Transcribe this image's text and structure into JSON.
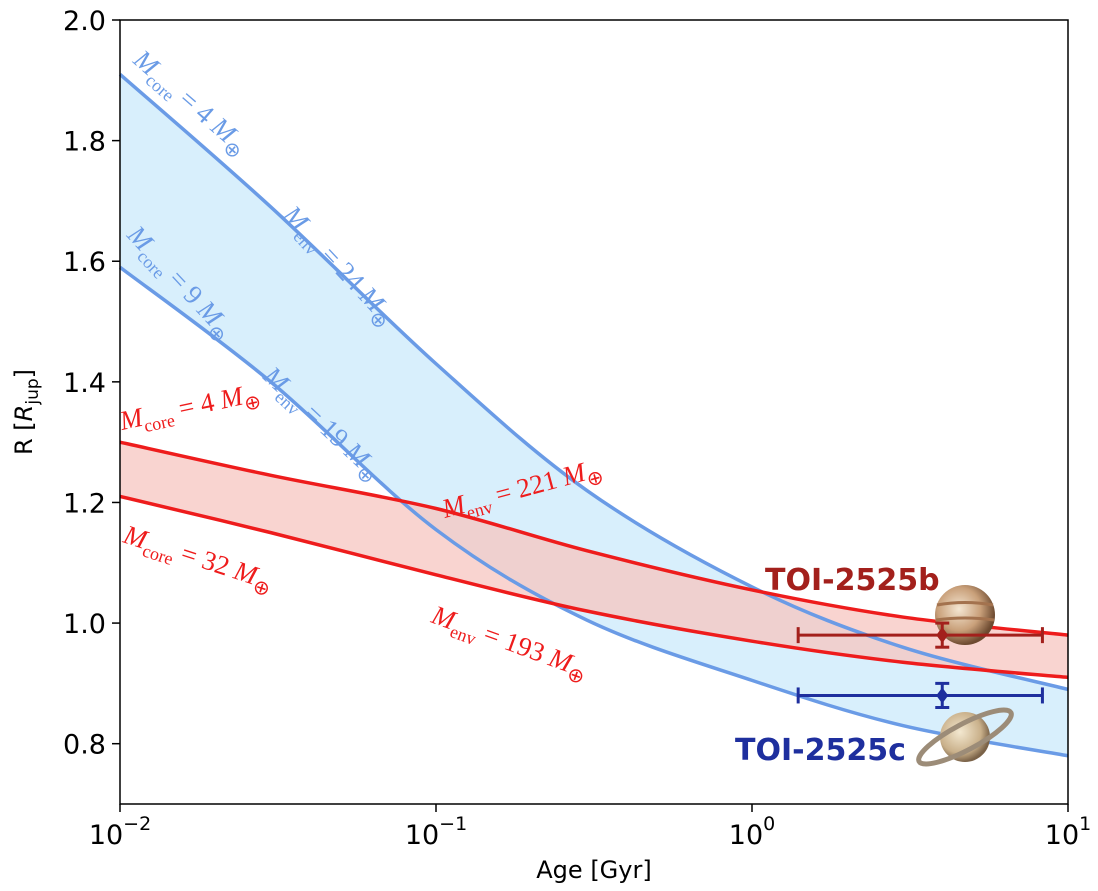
{
  "chart_data": {
    "type": "line",
    "xlabel": "Age [Gyr]",
    "ylabel": [
      "R [",
      "R",
      "jup",
      "]"
    ],
    "xscale": "log",
    "xlim": [
      0.01,
      10
    ],
    "ylim": [
      0.7,
      2.0
    ],
    "xticks": [
      {
        "value": 0.01,
        "label": "10",
        "exponent": "−2"
      },
      {
        "value": 0.1,
        "label": "10",
        "exponent": "−1"
      },
      {
        "value": 1,
        "label": "10",
        "exponent": "0"
      },
      {
        "value": 10,
        "label": "10",
        "exponent": "1"
      }
    ],
    "yticks": [
      0.8,
      {
        "value": 1,
        "label": "1.0"
      },
      1.2,
      1.4,
      1.6,
      1.8,
      {
        "value": 2,
        "label": "2.0"
      }
    ],
    "x": [
      0.01,
      0.03,
      0.1,
      0.3,
      1,
      3,
      10
    ],
    "series": [
      {
        "color": "#6a9be6",
        "band_color": "#cbe9fb",
        "values": [
          1.91,
          1.69,
          1.43,
          1.22,
          1.06,
          0.96,
          0.89
        ]
      },
      {
        "color": "#6a9be6",
        "values": [
          1.59,
          1.4,
          1.155,
          1.005,
          0.905,
          0.83,
          0.78
        ]
      },
      {
        "color": "#ee1c1c",
        "band_color": "#f7c6c0",
        "values": [
          1.3,
          1.245,
          1.19,
          1.12,
          1.055,
          1.01,
          0.98
        ]
      },
      {
        "color": "#ee1c1c",
        "values": [
          1.21,
          1.15,
          1.08,
          1.02,
          0.97,
          0.935,
          0.91
        ]
      }
    ],
    "annotations": [
      {
        "color": "#6a9be6",
        "text": [
          "M",
          "core",
          " = 4 ",
          "M",
          "⊕"
        ]
      },
      {
        "color": "#6a9be6",
        "text": [
          "M",
          "env",
          " = 24 ",
          "M",
          "⊕"
        ]
      },
      {
        "color": "#6a9be6",
        "text": [
          "M",
          "core",
          " = 9 ",
          "M",
          "⊕"
        ]
      },
      {
        "color": "#6a9be6",
        "text": [
          "M",
          "env",
          " = 19 ",
          "M",
          "⊕"
        ]
      },
      {
        "color": "#ee1c1c",
        "text": [
          "M",
          "core",
          " = 4 ",
          "M",
          "⊕"
        ]
      },
      {
        "color": "#ee1c1c",
        "text": [
          "M",
          "env",
          " = 221 ",
          "M",
          "⊕"
        ]
      },
      {
        "color": "#ee1c1c",
        "text": [
          "M",
          "core",
          " = 32 ",
          "M",
          "⊕"
        ]
      },
      {
        "color": "#ee1c1c",
        "text": [
          "M",
          "env",
          " = 193 ",
          "M",
          "⊕"
        ]
      }
    ],
    "points": [
      {
        "name": "TOI-2525b",
        "color": "#a3201c",
        "x": 4.0,
        "y": 0.98,
        "xmin": 1.4,
        "xmax": 8.3,
        "yerr": 0.02
      },
      {
        "name": "TOI-2525c",
        "color": "#1e2f9e",
        "x": 4.0,
        "y": 0.88,
        "xmin": 1.4,
        "xmax": 8.3,
        "yerr": 0.02
      }
    ]
  }
}
